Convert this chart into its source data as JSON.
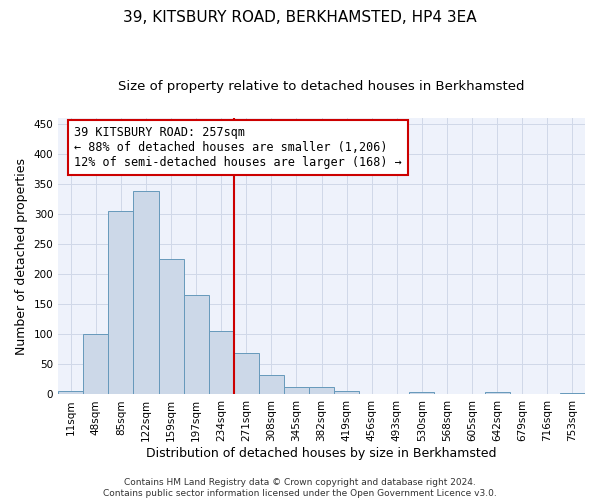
{
  "title": "39, KITSBURY ROAD, BERKHAMSTED, HP4 3EA",
  "subtitle": "Size of property relative to detached houses in Berkhamsted",
  "xlabel": "Distribution of detached houses by size in Berkhamsted",
  "ylabel": "Number of detached properties",
  "bar_labels": [
    "11sqm",
    "48sqm",
    "85sqm",
    "122sqm",
    "159sqm",
    "197sqm",
    "234sqm",
    "271sqm",
    "308sqm",
    "345sqm",
    "382sqm",
    "419sqm",
    "456sqm",
    "493sqm",
    "530sqm",
    "568sqm",
    "605sqm",
    "642sqm",
    "679sqm",
    "716sqm",
    "753sqm"
  ],
  "bar_values": [
    5,
    100,
    305,
    338,
    226,
    166,
    106,
    69,
    32,
    12,
    12,
    6,
    0,
    0,
    4,
    0,
    0,
    4,
    0,
    0,
    3
  ],
  "bar_color": "#ccd8e8",
  "bar_edge_color": "#6699bb",
  "vline_x_index": 7,
  "vline_color": "#cc0000",
  "annotation_line1": "39 KITSBURY ROAD: 257sqm",
  "annotation_line2": "← 88% of detached houses are smaller (1,206)",
  "annotation_line3": "12% of semi-detached houses are larger (168) →",
  "annotation_box_facecolor": "#ffffff",
  "annotation_box_edgecolor": "#cc0000",
  "ylim": [
    0,
    460
  ],
  "yticks": [
    0,
    50,
    100,
    150,
    200,
    250,
    300,
    350,
    400,
    450
  ],
  "footer_line1": "Contains HM Land Registry data © Crown copyright and database right 2024.",
  "footer_line2": "Contains public sector information licensed under the Open Government Licence v3.0.",
  "grid_color": "#d0d8e8",
  "bg_color": "#eef2fb",
  "title_fontsize": 11,
  "subtitle_fontsize": 9.5,
  "ylabel_fontsize": 9,
  "xlabel_fontsize": 9,
  "tick_fontsize": 7.5,
  "annotation_fontsize": 8.5,
  "footer_fontsize": 6.5
}
